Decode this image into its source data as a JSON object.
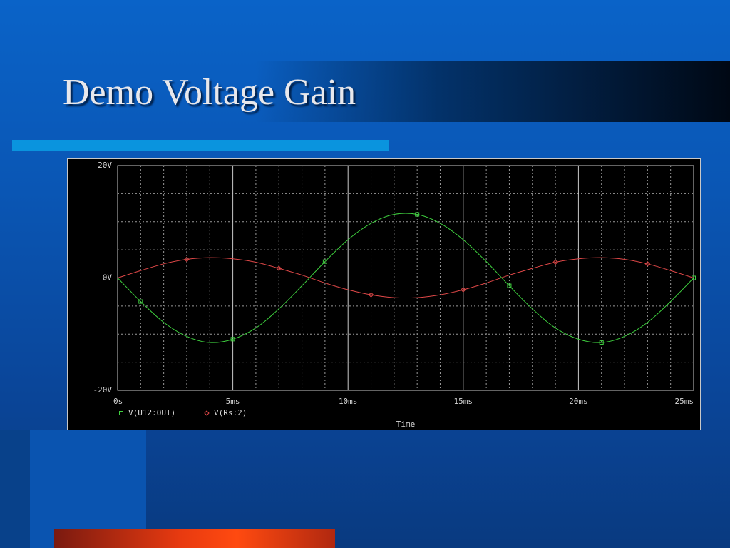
{
  "title": "Demo Voltage Gain",
  "chart_data": {
    "type": "line",
    "x_label": "Time",
    "x": [
      0,
      1,
      2,
      3,
      4,
      5,
      6,
      7,
      8,
      9,
      10,
      11,
      12,
      13,
      14,
      15,
      16,
      17,
      18,
      19,
      20,
      21,
      22,
      23,
      24,
      25
    ],
    "series": [
      {
        "name": "V(U12:OUT)",
        "color": "#3fd13f",
        "marker": "square",
        "values": [
          0,
          -4.2,
          -7.9,
          -10.4,
          -11.5,
          -10.9,
          -8.9,
          -5.5,
          -1.4,
          2.9,
          6.8,
          9.7,
          11.3,
          11.3,
          9.7,
          6.8,
          2.9,
          -1.4,
          -5.5,
          -8.9,
          -10.9,
          -11.5,
          -10.4,
          -7.9,
          -4.2,
          0
        ]
      },
      {
        "name": "V(Rs:2)",
        "color": "#e04848",
        "marker": "diamond",
        "values": [
          0,
          1.3,
          2.5,
          3.3,
          3.6,
          3.4,
          2.8,
          1.7,
          0.5,
          -0.9,
          -2.1,
          -3.0,
          -3.5,
          -3.5,
          -3.0,
          -2.1,
          -0.9,
          0.5,
          1.7,
          2.8,
          3.4,
          3.6,
          3.3,
          2.5,
          1.3,
          0
        ]
      }
    ],
    "xlim": [
      0,
      25
    ],
    "xticks": [
      {
        "value": 0,
        "label": "0s"
      },
      {
        "value": 5,
        "label": "5ms"
      },
      {
        "value": 10,
        "label": "10ms"
      },
      {
        "value": 15,
        "label": "15ms"
      },
      {
        "value": 20,
        "label": "20ms"
      },
      {
        "value": 25,
        "label": "25ms"
      }
    ],
    "ylim": [
      -20,
      20
    ],
    "yticks": [
      {
        "value": -20,
        "label": "-20V"
      },
      {
        "value": 0,
        "label": "0V"
      },
      {
        "value": 20,
        "label": "20V"
      }
    ],
    "grid": true
  }
}
